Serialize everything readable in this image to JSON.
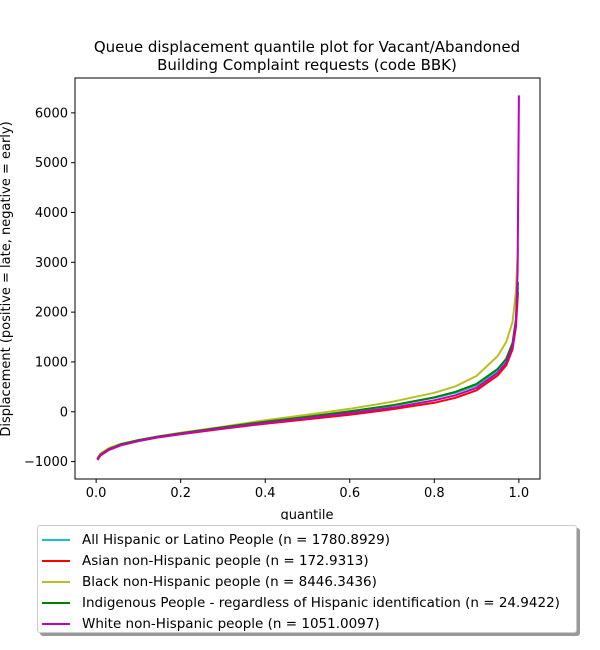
{
  "chart_data": {
    "type": "line",
    "title": "Queue displacement quantile plot for Vacant/Abandoned\nBuilding Complaint  requests (code BBK)",
    "xlabel": "quantile",
    "ylabel": "Displacement (positive = late, negative = early)",
    "xlim": [
      -0.05,
      1.05
    ],
    "ylim": [
      -1350,
      6700
    ],
    "xticks": [
      "0.0",
      "0.2",
      "0.4",
      "0.6",
      "0.8",
      "1.0"
    ],
    "xtick_values": [
      0,
      0.2,
      0.4,
      0.6,
      0.8,
      1.0
    ],
    "yticks": [
      "−1000",
      "0",
      "1000",
      "2000",
      "3000",
      "4000",
      "5000",
      "6000"
    ],
    "ytick_values": [
      -1000,
      0,
      1000,
      2000,
      3000,
      4000,
      5000,
      6000
    ],
    "grid": false,
    "legend_position": "below",
    "series": [
      {
        "name": "All Hispanic or Latino People (n = 1780.8929)",
        "color": "#17becf",
        "x": [
          0.003,
          0.01,
          0.03,
          0.06,
          0.1,
          0.15,
          0.2,
          0.3,
          0.4,
          0.5,
          0.6,
          0.7,
          0.8,
          0.85,
          0.9,
          0.95,
          0.97,
          0.985,
          0.993,
          0.998
        ],
        "y": [
          -960,
          -870,
          -760,
          -660,
          -580,
          -500,
          -440,
          -320,
          -210,
          -110,
          0,
          120,
          280,
          380,
          530,
          820,
          1000,
          1300,
          1800,
          2500
        ]
      },
      {
        "name": "Asian non-Hispanic people (n = 172.9313)",
        "color": "#ff0000",
        "x": [
          0.003,
          0.01,
          0.03,
          0.06,
          0.1,
          0.15,
          0.2,
          0.3,
          0.4,
          0.5,
          0.6,
          0.7,
          0.8,
          0.85,
          0.9,
          0.95,
          0.97,
          0.985,
          0.993,
          0.998
        ],
        "y": [
          -970,
          -880,
          -770,
          -670,
          -590,
          -510,
          -450,
          -340,
          -240,
          -150,
          -60,
          50,
          180,
          280,
          430,
          730,
          930,
          1250,
          1700,
          2400
        ]
      },
      {
        "name": "Black non-Hispanic people (n = 8446.3436)",
        "color": "#bcbd22",
        "x": [
          0.003,
          0.01,
          0.03,
          0.06,
          0.1,
          0.15,
          0.2,
          0.3,
          0.4,
          0.5,
          0.6,
          0.7,
          0.8,
          0.85,
          0.9,
          0.95,
          0.97,
          0.985,
          0.993,
          0.998
        ],
        "y": [
          -930,
          -840,
          -730,
          -640,
          -570,
          -490,
          -420,
          -300,
          -170,
          -60,
          60,
          200,
          380,
          510,
          720,
          1120,
          1400,
          1800,
          2400,
          3300
        ]
      },
      {
        "name": "Indigenous People - regardless of Hispanic identification (n = 24.9422)",
        "color": "#008000",
        "x": [
          0.003,
          0.01,
          0.03,
          0.06,
          0.1,
          0.15,
          0.2,
          0.3,
          0.4,
          0.5,
          0.6,
          0.7,
          0.8,
          0.85,
          0.9,
          0.95,
          0.97,
          0.985,
          0.993,
          0.998
        ],
        "y": [
          -950,
          -860,
          -750,
          -650,
          -570,
          -490,
          -430,
          -310,
          -200,
          -100,
          10,
          130,
          290,
          400,
          560,
          860,
          1060,
          1380,
          1850,
          2600
        ]
      },
      {
        "name": "White non-Hispanic people (n = 1051.0097)",
        "color": "#bf00bf",
        "x": [
          0.003,
          0.01,
          0.03,
          0.06,
          0.1,
          0.15,
          0.2,
          0.3,
          0.4,
          0.5,
          0.6,
          0.7,
          0.8,
          0.85,
          0.9,
          0.95,
          0.97,
          0.985,
          0.993,
          0.997,
          1.0
        ],
        "y": [
          -960,
          -870,
          -760,
          -665,
          -585,
          -505,
          -445,
          -330,
          -225,
          -130,
          -30,
          80,
          230,
          330,
          480,
          780,
          980,
          1300,
          1800,
          2800,
          6350
        ]
      }
    ]
  }
}
